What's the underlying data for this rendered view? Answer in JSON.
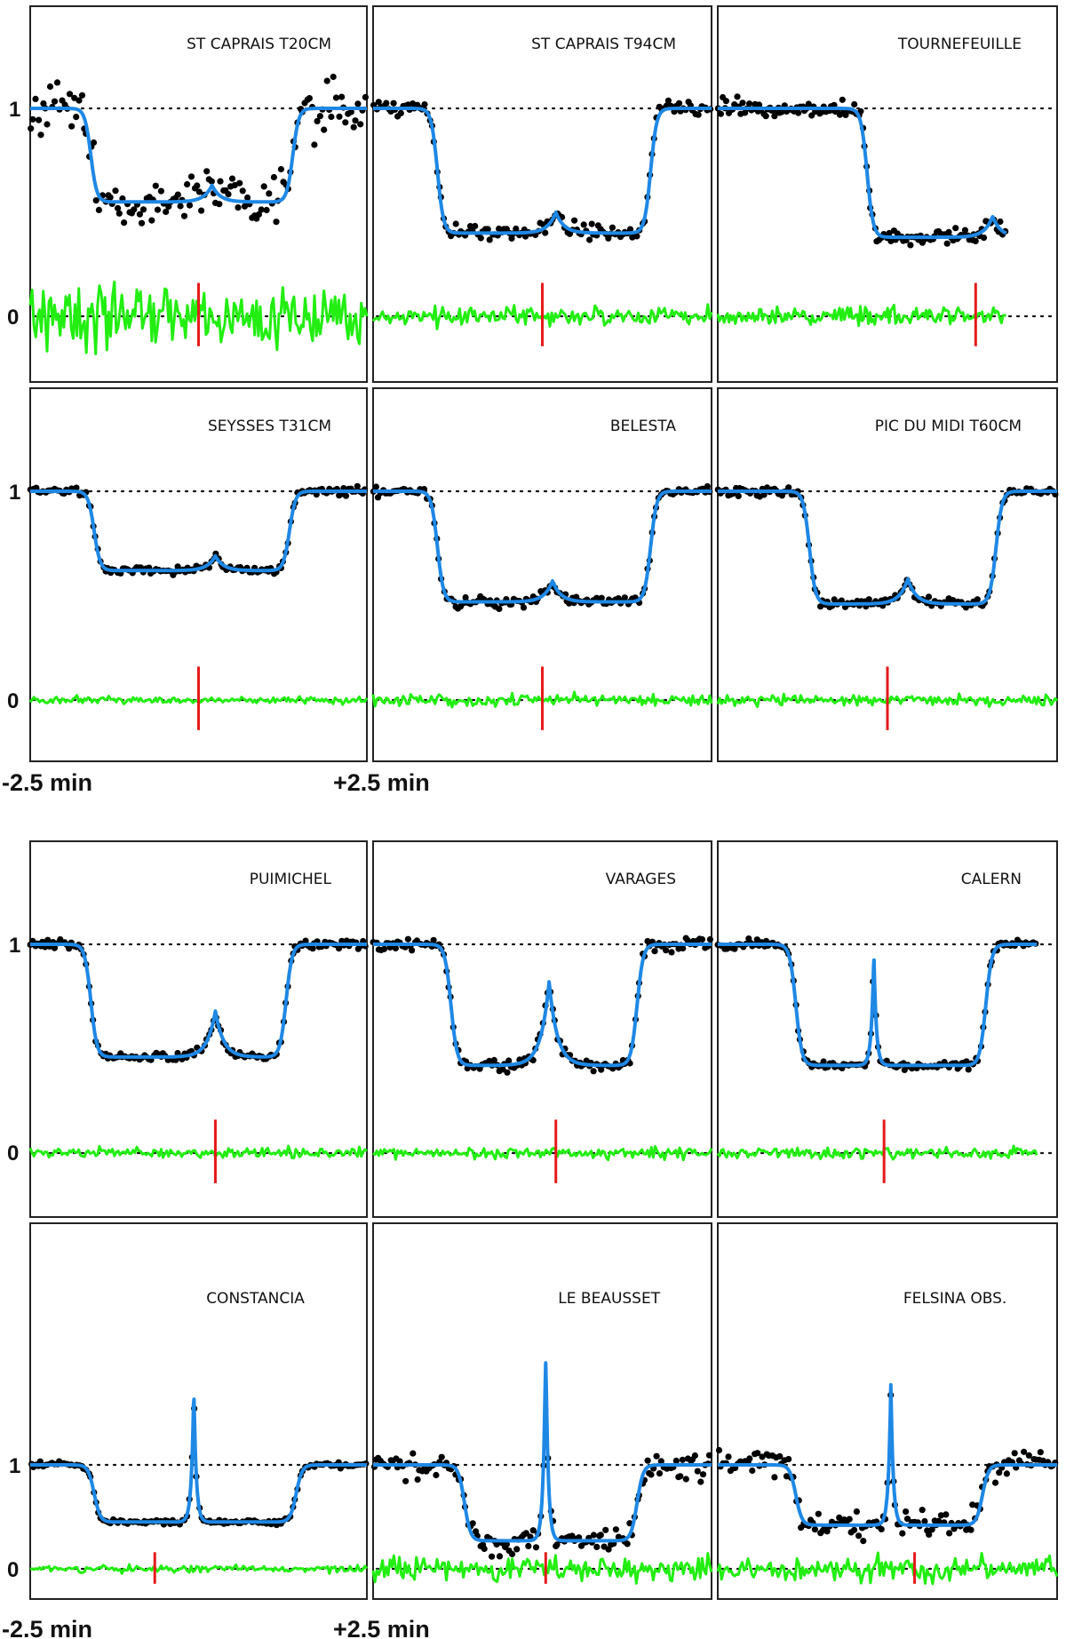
{
  "colors": {
    "points": "#000000",
    "model": "#1e88e5",
    "residuals": "#22ee11",
    "midline": "#e51a1a"
  },
  "x_labels": {
    "left": "-2.5 min",
    "right": "+2.5 min"
  },
  "y_tick_labels": {
    "one": "1",
    "zero": "0"
  },
  "chart_data": [
    {
      "type": "line",
      "title": "ST CAPRAIS T20CM",
      "depth": 0.55,
      "peak": 0.08,
      "noise": 0.11,
      "resid_amp": 0.14,
      "ingress": -1.6,
      "egress": 1.4,
      "peak_x": 0.2,
      "mid_x": 0.0,
      "x_end": 2.5,
      "ylim": [
        -0.35,
        1.45
      ]
    },
    {
      "type": "line",
      "title": "ST CAPRAIS T94CM",
      "depth": 0.4,
      "peak": 0.1,
      "noise": 0.035,
      "resid_amp": 0.04,
      "ingress": -1.55,
      "egress": 1.6,
      "peak_x": 0.2,
      "mid_x": 0.0,
      "x_end": 2.5,
      "ylim": [
        -0.35,
        1.45
      ]
    },
    {
      "type": "line",
      "title": "TOURNEFEUILLE",
      "depth": 0.38,
      "peak": 0.1,
      "noise": 0.04,
      "resid_amp": 0.04,
      "ingress": -0.3,
      "egress": 2.5,
      "peak_x": 1.55,
      "mid_x": 1.3,
      "x_end": 1.75,
      "ylim": [
        -0.35,
        1.45
      ]
    },
    {
      "type": "line",
      "title": "SEYSSES T31CM",
      "depth": 0.62,
      "peak": 0.07,
      "noise": 0.018,
      "resid_amp": 0.015,
      "ingress": -1.55,
      "egress": 1.35,
      "peak_x": 0.25,
      "mid_x": 0.0,
      "x_end": 2.5,
      "ylim": [
        -0.35,
        1.45
      ]
    },
    {
      "type": "line",
      "title": "BELESTA",
      "depth": 0.47,
      "peak": 0.1,
      "noise": 0.022,
      "resid_amp": 0.025,
      "ingress": -1.55,
      "egress": 1.6,
      "peak_x": 0.15,
      "mid_x": 0.0,
      "x_end": 2.5,
      "ylim": [
        -0.35,
        1.45
      ]
    },
    {
      "type": "line",
      "title": "PIC DU MIDI T60CM",
      "depth": 0.46,
      "peak": 0.12,
      "noise": 0.02,
      "resid_amp": 0.025,
      "ingress": -1.15,
      "egress": 1.6,
      "peak_x": 0.3,
      "mid_x": 0.0,
      "x_end": 2.5,
      "ylim": [
        -0.35,
        1.45
      ]
    },
    {
      "type": "line",
      "title": "PUIMICHEL",
      "depth": 0.46,
      "peak": 0.22,
      "noise": 0.02,
      "resid_amp": 0.025,
      "ingress": -1.6,
      "egress": 1.3,
      "peak_x": 0.25,
      "mid_x": 0.25,
      "x_end": 2.5,
      "ylim": [
        -0.35,
        1.45
      ]
    },
    {
      "type": "line",
      "title": "VARAGES",
      "depth": 0.42,
      "peak": 0.4,
      "noise": 0.03,
      "resid_amp": 0.025,
      "ingress": -1.35,
      "egress": 1.4,
      "peak_x": 0.1,
      "mid_x": 0.2,
      "x_end": 2.5,
      "ylim": [
        -0.35,
        1.45
      ]
    },
    {
      "type": "line",
      "title": "CALERN",
      "depth": 0.42,
      "peak": 0.55,
      "noise": 0.02,
      "resid_amp": 0.025,
      "ingress": -1.35,
      "egress": 1.45,
      "peak_x": -0.2,
      "mid_x": -0.05,
      "x_end": 2.2,
      "ylim": [
        -0.35,
        1.45
      ]
    },
    {
      "type": "line",
      "title": "CONSTANCIA",
      "depth": 0.45,
      "peak": 1.3,
      "noise": 0.025,
      "resid_amp": 0.03,
      "ingress": -1.55,
      "egress": 1.45,
      "peak_x": -0.07,
      "mid_x": -0.65,
      "x_end": 2.5,
      "ylim": [
        -0.3,
        2.0
      ]
    },
    {
      "type": "line",
      "title": "LE BEAUSSET",
      "depth": 0.27,
      "peak": 1.9,
      "noise": 0.12,
      "resid_amp": 0.11,
      "ingress": -1.15,
      "egress": 1.4,
      "peak_x": 0.05,
      "mid_x": 0.05,
      "x_end": 2.5,
      "ylim": [
        -0.3,
        2.0
      ]
    },
    {
      "type": "line",
      "title": "FELSINA OBS.",
      "depth": 0.42,
      "peak": 1.35,
      "noise": 0.12,
      "resid_amp": 0.11,
      "ingress": -1.35,
      "egress": 1.4,
      "peak_x": 0.05,
      "mid_x": 0.4,
      "x_end": 2.5,
      "ylim": [
        -0.3,
        2.0
      ]
    }
  ]
}
